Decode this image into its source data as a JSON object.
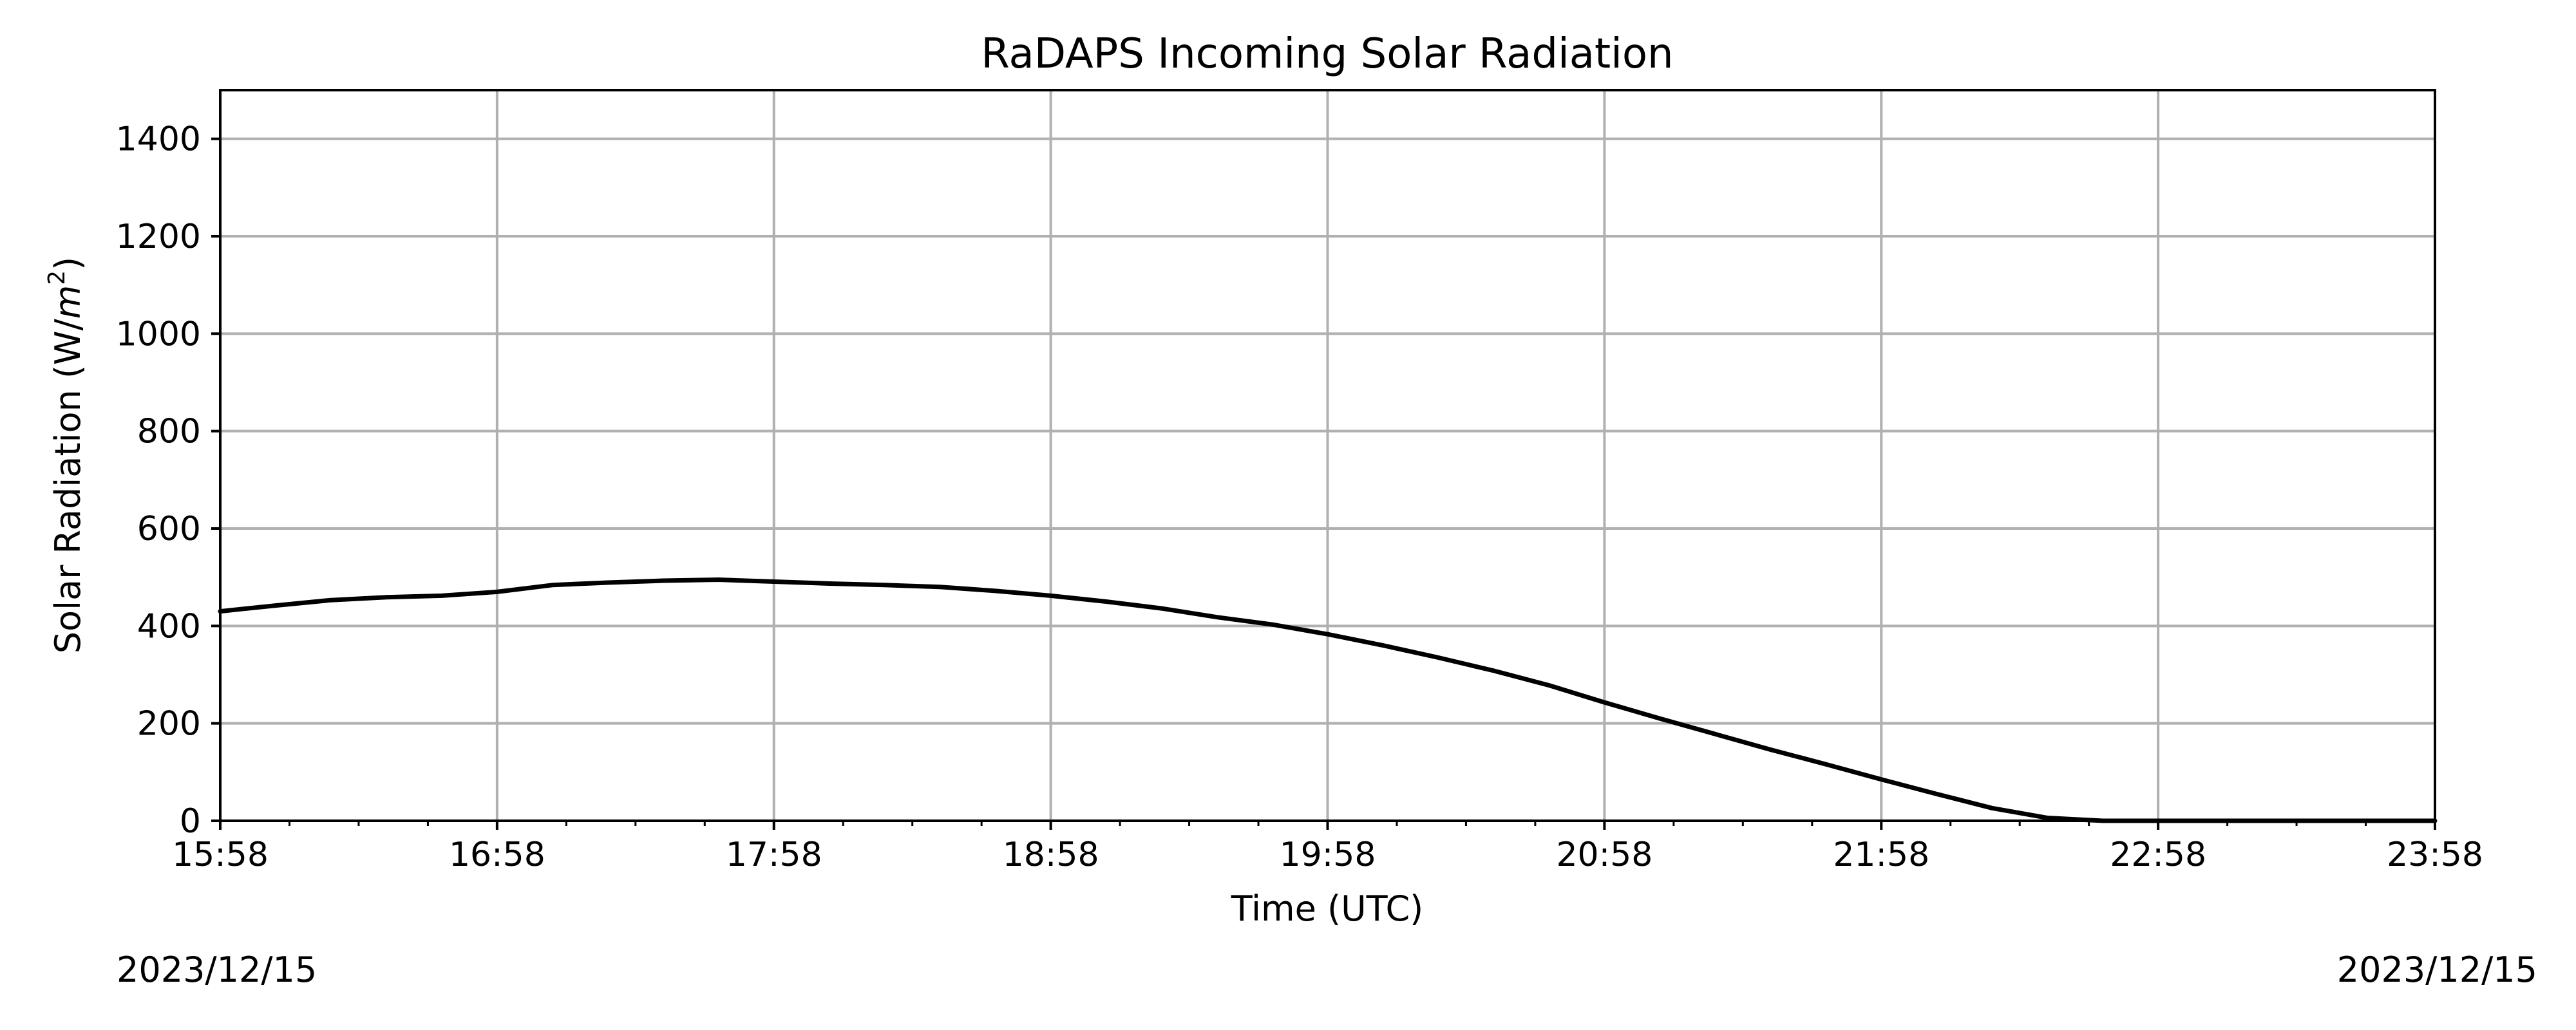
{
  "chart_data": {
    "type": "line",
    "title": "RaDAPS Incoming Solar Radiation",
    "xlabel": "Time (UTC)",
    "ylabel_main": "Solar Radiation (W/",
    "ylabel_unit": "m",
    "ylabel_sup": "2",
    "ylabel_close": ")",
    "ylim": [
      0,
      1500
    ],
    "yticks": [
      0,
      200,
      400,
      600,
      800,
      1000,
      1200,
      1400
    ],
    "xlim_minutes": [
      0,
      480
    ],
    "xticks": [
      "15:58",
      "16:58",
      "17:58",
      "18:58",
      "19:58",
      "20:58",
      "21:58",
      "22:58",
      "23:58"
    ],
    "minor_xticks_per_major": 4,
    "grid": true,
    "date_start": "2023/12/15",
    "date_end": "2023/12/15",
    "series": [
      {
        "color": "#000000",
        "x_minutes": [
          0,
          12,
          24,
          36,
          48,
          60,
          72,
          84,
          96,
          108,
          120,
          132,
          144,
          156,
          168,
          180,
          192,
          204,
          216,
          228,
          240,
          252,
          264,
          276,
          288,
          300,
          312,
          324,
          336,
          348,
          360,
          372,
          384,
          396,
          408,
          420,
          432,
          444,
          456,
          468,
          480
        ],
        "values": [
          430,
          442,
          453,
          459,
          462,
          470,
          484,
          489,
          493,
          495,
          491,
          487,
          484,
          480,
          472,
          462,
          450,
          436,
          418,
          403,
          383,
          360,
          335,
          308,
          278,
          243,
          210,
          178,
          146,
          116,
          85,
          55,
          26,
          6,
          0,
          0,
          0,
          0,
          0,
          0,
          0
        ]
      }
    ]
  }
}
